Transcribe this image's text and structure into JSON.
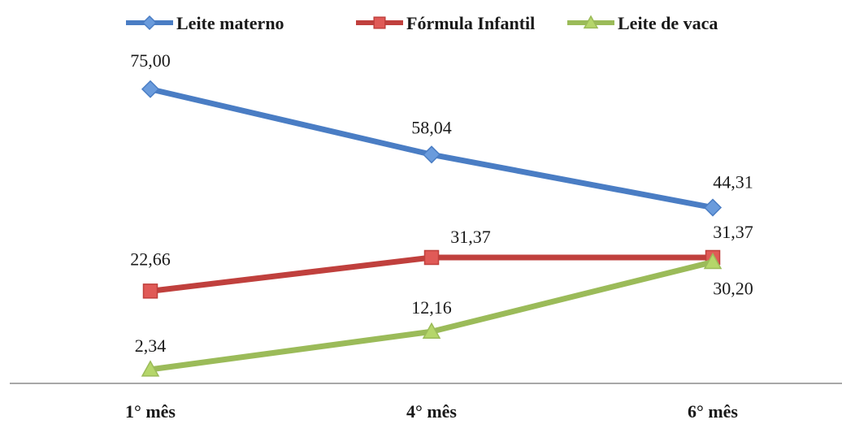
{
  "chart_data": {
    "type": "line",
    "categories": [
      "1° mês",
      "4° mês",
      "6° mês"
    ],
    "series": [
      {
        "name": "Leite materno",
        "values": [
          75.0,
          58.04,
          44.31
        ],
        "labels": [
          "75,00",
          "58,04",
          "44,31"
        ],
        "color": "#4a7dc4",
        "marker_fill": "#6a9bdc",
        "marker": "diamond"
      },
      {
        "name": "Fórmula Infantil",
        "values": [
          22.66,
          31.37,
          31.37
        ],
        "labels": [
          "22,66",
          "31,37",
          "31,37"
        ],
        "color": "#c0403d",
        "marker_fill": "#e05a57",
        "marker": "square"
      },
      {
        "name": "Leite de vaca",
        "values": [
          2.34,
          12.16,
          30.2
        ],
        "labels": [
          "2,34",
          "12,16",
          "30,20"
        ],
        "color": "#9bbb59",
        "marker_fill": "#b5d66a",
        "marker": "triangle"
      }
    ],
    "title": "",
    "xlabel": "",
    "ylabel": "",
    "ylim": [
      0,
      80
    ],
    "grid": false,
    "legend_position": "top"
  }
}
